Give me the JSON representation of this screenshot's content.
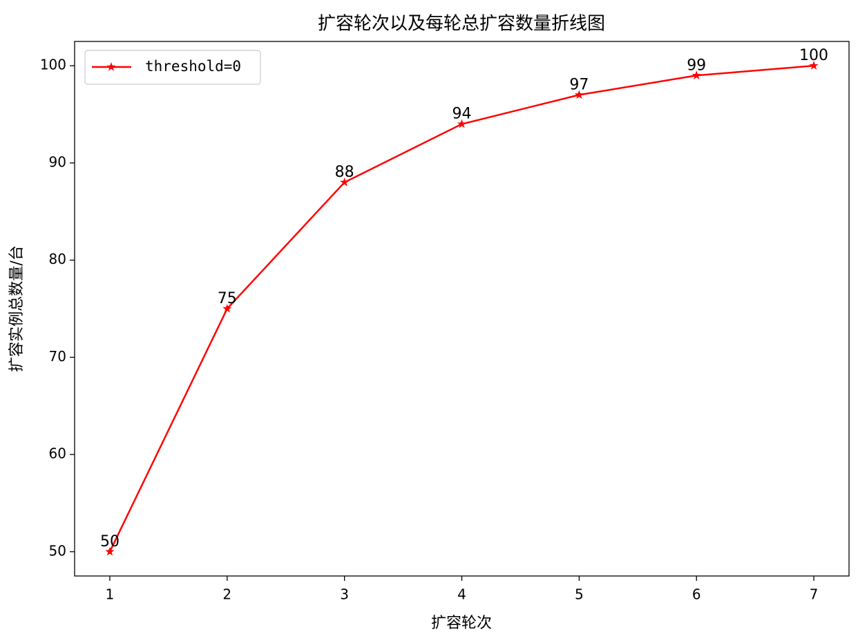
{
  "chart_data": {
    "type": "line",
    "title": "扩容轮次以及每轮总扩容数量折线图",
    "xlabel": "扩容轮次",
    "ylabel": "扩容实例总数量/台",
    "x": [
      1,
      2,
      3,
      4,
      5,
      6,
      7
    ],
    "series": [
      {
        "name": "threshold=0",
        "color": "#ff0000",
        "values": [
          50,
          75,
          88,
          94,
          97,
          99,
          100
        ]
      }
    ],
    "xlim": [
      0.7,
      7.3
    ],
    "xticks": [
      1,
      2,
      3,
      4,
      5,
      6,
      7
    ],
    "ylim": [
      47.5,
      102.5
    ],
    "yticks": [
      50,
      60,
      70,
      80,
      90,
      100
    ],
    "grid": false,
    "legend": "upper left",
    "marker": "star"
  }
}
